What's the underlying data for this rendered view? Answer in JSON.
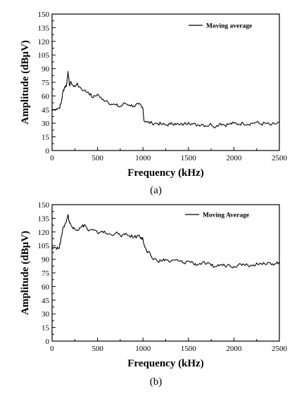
{
  "chart_data": [
    {
      "type": "line",
      "caption": "(a)",
      "xlabel": "Frequency (kHz)",
      "ylabel": "Amplitude (dBμV)",
      "xlim": [
        0,
        2500
      ],
      "ylim": [
        0,
        150
      ],
      "xticks": [
        0,
        500,
        1000,
        1500,
        2000,
        2500
      ],
      "yticks": [
        0,
        15,
        30,
        45,
        60,
        75,
        90,
        105,
        120,
        135,
        150
      ],
      "grid": false,
      "legend_position": "top-right",
      "series": [
        {
          "name": "Moving average",
          "x": [
            0,
            50,
            80,
            100,
            120,
            140,
            160,
            175,
            190,
            210,
            240,
            270,
            300,
            350,
            400,
            450,
            500,
            550,
            600,
            650,
            700,
            750,
            800,
            850,
            900,
            950,
            990,
            1000,
            1010,
            1050,
            1100,
            1150,
            1200,
            1250,
            1300,
            1350,
            1400,
            1450,
            1500,
            1550,
            1600,
            1650,
            1700,
            1750,
            1800,
            1850,
            1900,
            1950,
            2000,
            2050,
            2100,
            2150,
            2200,
            2250,
            2300,
            2350,
            2400,
            2450,
            2500
          ],
          "y": [
            44,
            46,
            47,
            52,
            65,
            70,
            72,
            87,
            72,
            75,
            70,
            73,
            70,
            66,
            64,
            58,
            62,
            56,
            55,
            51,
            50,
            48,
            52,
            50,
            49,
            51,
            47,
            46,
            33,
            31,
            30,
            30,
            29,
            28,
            29,
            30,
            28,
            29,
            31,
            29,
            28,
            29,
            27,
            29,
            26,
            30,
            28,
            29,
            30,
            29,
            30,
            29,
            30,
            31,
            29,
            30,
            28,
            29,
            31
          ]
        }
      ]
    },
    {
      "type": "line",
      "caption": "(b)",
      "xlabel": "Frequency (kHz)",
      "ylabel": "Amplitude (dBμV)",
      "xlim": [
        0,
        2500
      ],
      "ylim": [
        0,
        150
      ],
      "xticks": [
        0,
        500,
        1000,
        1500,
        2000,
        2500
      ],
      "yticks": [
        0,
        15,
        30,
        45,
        60,
        75,
        90,
        105,
        120,
        135,
        150
      ],
      "grid": false,
      "legend_position": "top-right",
      "series": [
        {
          "name": "Moving Average",
          "x": [
            0,
            40,
            80,
            100,
            130,
            150,
            175,
            190,
            210,
            240,
            280,
            330,
            360,
            400,
            450,
            500,
            550,
            600,
            650,
            700,
            750,
            800,
            850,
            900,
            950,
            980,
            1000,
            1020,
            1050,
            1080,
            1100,
            1150,
            1200,
            1250,
            1300,
            1350,
            1400,
            1450,
            1500,
            1550,
            1600,
            1650,
            1700,
            1750,
            1800,
            1850,
            1900,
            1950,
            2000,
            2050,
            2100,
            2150,
            2200,
            2250,
            2300,
            2350,
            2400,
            2450,
            2500
          ],
          "y": [
            104,
            103,
            102,
            115,
            126,
            130,
            139,
            131,
            127,
            125,
            122,
            126,
            128,
            121,
            122,
            119,
            121,
            118,
            117,
            119,
            116,
            117,
            116,
            114,
            116,
            114,
            112,
            103,
            97,
            96,
            91,
            89,
            88,
            90,
            87,
            89,
            88,
            86,
            88,
            86,
            84,
            86,
            85,
            83,
            82,
            84,
            83,
            84,
            82,
            84,
            85,
            84,
            83,
            86,
            85,
            84,
            86,
            85,
            87
          ]
        }
      ]
    }
  ]
}
